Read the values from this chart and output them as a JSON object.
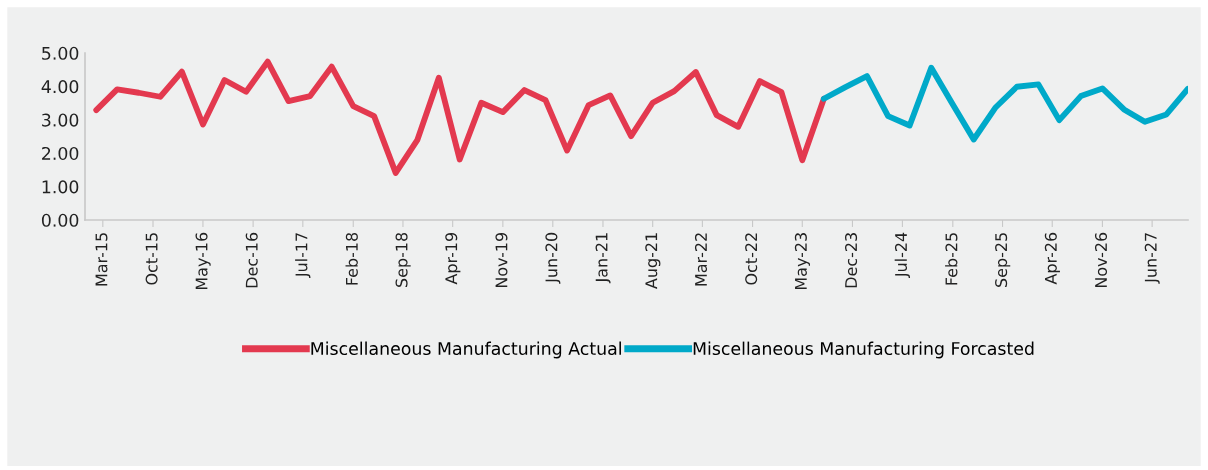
{
  "chart_data": {
    "type": "line",
    "series": [
      {
        "name": "Miscellaneous Manufacturing Actual",
        "color": "#e3394f",
        "x": [
          "2015-02",
          "2015-05",
          "2015-08",
          "2015-11",
          "2016-02",
          "2016-05",
          "2016-08",
          "2016-11",
          "2017-02",
          "2017-05",
          "2017-08",
          "2017-11",
          "2018-02",
          "2018-05",
          "2018-08",
          "2018-11",
          "2019-02",
          "2019-05",
          "2019-08",
          "2019-11",
          "2020-02",
          "2020-05",
          "2020-08",
          "2020-11",
          "2021-02",
          "2021-05",
          "2021-08",
          "2021-11",
          "2022-02",
          "2022-05",
          "2022-08",
          "2022-11",
          "2023-02",
          "2023-05",
          "2023-08"
        ],
        "values": [
          3.29,
          3.91,
          3.81,
          3.69,
          4.44,
          2.86,
          4.19,
          3.84,
          4.74,
          3.56,
          3.71,
          4.59,
          3.41,
          3.11,
          1.41,
          2.39,
          4.26,
          1.81,
          3.51,
          3.23,
          3.89,
          3.59,
          2.08,
          3.44,
          3.73,
          2.51,
          3.51,
          3.86,
          4.43,
          3.14,
          2.79,
          4.16,
          3.83,
          1.79,
          3.63
        ]
      },
      {
        "name": "Miscellaneous Manufacturing Forcasted",
        "color": "#00a9c9",
        "x": [
          "2023-08",
          "2023-11",
          "2024-02",
          "2024-05",
          "2024-08",
          "2024-11",
          "2025-02",
          "2025-05",
          "2025-08",
          "2025-11",
          "2026-02",
          "2026-05",
          "2026-08",
          "2026-11",
          "2027-02",
          "2027-05",
          "2027-08",
          "2027-11"
        ],
        "values": [
          3.63,
          3.98,
          4.31,
          3.11,
          2.83,
          4.56,
          3.46,
          2.41,
          3.36,
          3.99,
          4.06,
          2.99,
          3.71,
          3.94,
          3.31,
          2.94,
          3.16,
          3.93
        ]
      }
    ],
    "xlim": [
      "2014-12-15",
      "2027-11-01"
    ],
    "xticks": [
      {
        "value": "2015-03",
        "label": "Mar-15"
      },
      {
        "value": "2015-10",
        "label": "Oct-15"
      },
      {
        "value": "2016-05",
        "label": "May-16"
      },
      {
        "value": "2016-12",
        "label": "Dec-16"
      },
      {
        "value": "2017-07",
        "label": "Jul-17"
      },
      {
        "value": "2018-02",
        "label": "Feb-18"
      },
      {
        "value": "2018-09",
        "label": "Sep-18"
      },
      {
        "value": "2019-04",
        "label": "Apr-19"
      },
      {
        "value": "2019-11",
        "label": "Nov-19"
      },
      {
        "value": "2020-06",
        "label": "Jun-20"
      },
      {
        "value": "2021-01",
        "label": "Jan-21"
      },
      {
        "value": "2021-08",
        "label": "Aug-21"
      },
      {
        "value": "2022-03",
        "label": "Mar-22"
      },
      {
        "value": "2022-10",
        "label": "Oct-22"
      },
      {
        "value": "2023-05",
        "label": "May-23"
      },
      {
        "value": "2023-12",
        "label": "Dec-23"
      },
      {
        "value": "2024-07",
        "label": "Jul-24"
      },
      {
        "value": "2025-02",
        "label": "Feb-25"
      },
      {
        "value": "2025-09",
        "label": "Sep-25"
      },
      {
        "value": "2026-04",
        "label": "Apr-26"
      },
      {
        "value": "2026-11",
        "label": "Nov-26"
      },
      {
        "value": "2027-06",
        "label": "Jun-27"
      }
    ],
    "ylim": [
      0,
      5
    ],
    "yticks": [
      {
        "value": 0,
        "label": "0.00"
      },
      {
        "value": 1,
        "label": "1.00"
      },
      {
        "value": 2,
        "label": "2.00"
      },
      {
        "value": 3,
        "label": "3.00"
      },
      {
        "value": 4,
        "label": "4.00"
      },
      {
        "value": 5,
        "label": "5.00"
      }
    ],
    "grid": false,
    "legend": "bottom",
    "marker": "none",
    "line_style": "solid"
  }
}
